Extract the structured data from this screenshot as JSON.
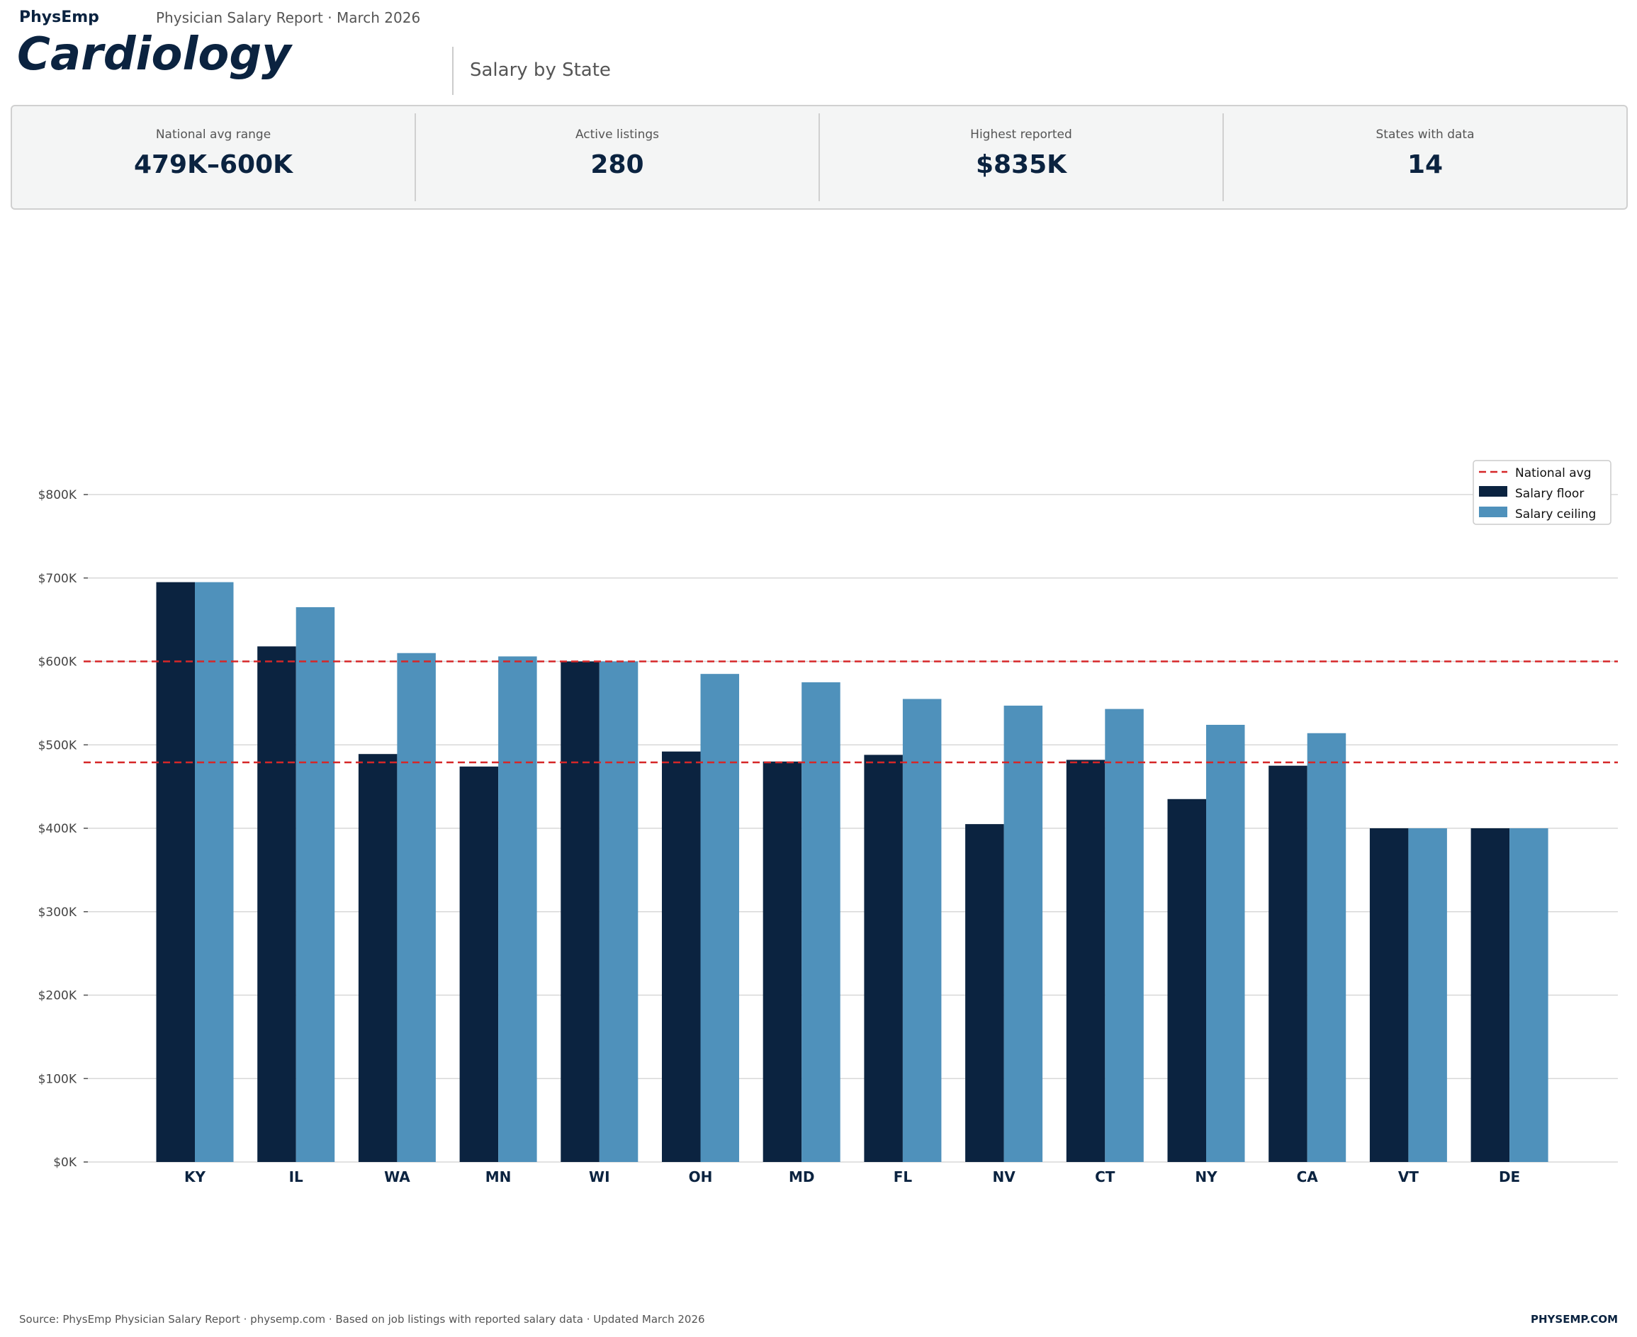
{
  "header": {
    "brand": "PhysEmp",
    "report": "Physician Salary Report  ·  March 2026",
    "title": "Cardiology",
    "subtitle": "Salary by State"
  },
  "stats": [
    {
      "label": "National avg range",
      "value": "479K–600K"
    },
    {
      "label": "Active listings",
      "value": "280"
    },
    {
      "label": "Highest reported",
      "value": "$835K"
    },
    {
      "label": "States with data",
      "value": "14"
    }
  ],
  "chart_data": {
    "type": "bar",
    "categories": [
      "KY",
      "IL",
      "WA",
      "MN",
      "WI",
      "OH",
      "MD",
      "FL",
      "NV",
      "CT",
      "NY",
      "CA",
      "VT",
      "DE"
    ],
    "series": [
      {
        "name": "Salary floor",
        "color": "#0b2340",
        "values": [
          695,
          618,
          489,
          474,
          600,
          492,
          480,
          488,
          405,
          482,
          435,
          475,
          400,
          400
        ]
      },
      {
        "name": "Salary ceiling",
        "color": "#4f91bb",
        "values": [
          695,
          665,
          610,
          606,
          600,
          585,
          575,
          555,
          547,
          543,
          524,
          514,
          400,
          400
        ]
      }
    ],
    "reference_lines": [
      {
        "name": "National avg",
        "values": [
          479,
          600
        ],
        "color": "#d62728",
        "style": "dashed"
      }
    ],
    "yunit": "thousands USD",
    "ylim": [
      0,
      800
    ],
    "yticks": [
      "$0K",
      "$100K",
      "$200K",
      "$300K",
      "$400K",
      "$500K",
      "$600K",
      "$700K",
      "$800K"
    ],
    "grid": true,
    "legend": "top-right",
    "legend_entries": [
      "National avg",
      "Salary floor",
      "Salary ceiling"
    ]
  },
  "footer": {
    "source": "Source: PhysEmp Physician Salary Report  ·  physemp.com  ·  Based on job listings with reported salary data  ·  Updated March 2026",
    "brand": "PHYSEMP.COM"
  }
}
